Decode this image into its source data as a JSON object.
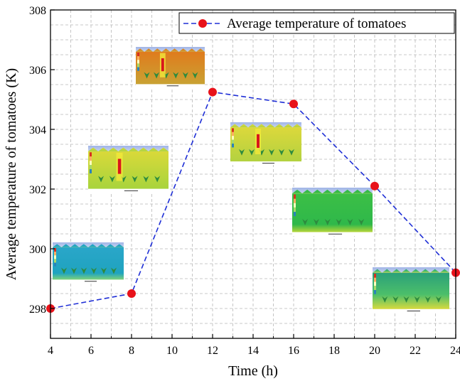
{
  "chart_data": {
    "type": "line",
    "xlabel": "Time (h)",
    "ylabel": "Average temperature of tomatoes (K)",
    "xlim": [
      4,
      24
    ],
    "ylim": [
      297,
      308
    ],
    "xticks": [
      4,
      6,
      8,
      10,
      12,
      14,
      16,
      18,
      20,
      22,
      24
    ],
    "yticks": [
      298,
      300,
      302,
      304,
      306,
      308
    ],
    "grid": true,
    "legend_position": "top-right",
    "series": [
      {
        "name": "Average temperature of tomatoes",
        "color": "#1f2fd6",
        "marker_color": "#e8121a",
        "line_style": "dashed",
        "x": [
          4,
          8,
          12,
          16,
          20,
          24
        ],
        "y": [
          298.0,
          298.5,
          305.25,
          304.85,
          302.1,
          299.2
        ]
      }
    ],
    "insets": [
      {
        "time": 4,
        "theme": "teal"
      },
      {
        "time": 8,
        "theme": "yellow"
      },
      {
        "time": 10,
        "theme": "orange"
      },
      {
        "time": 16,
        "theme": "yellow-red"
      },
      {
        "time": 20,
        "theme": "green"
      },
      {
        "time": 24,
        "theme": "green-teal"
      }
    ]
  }
}
